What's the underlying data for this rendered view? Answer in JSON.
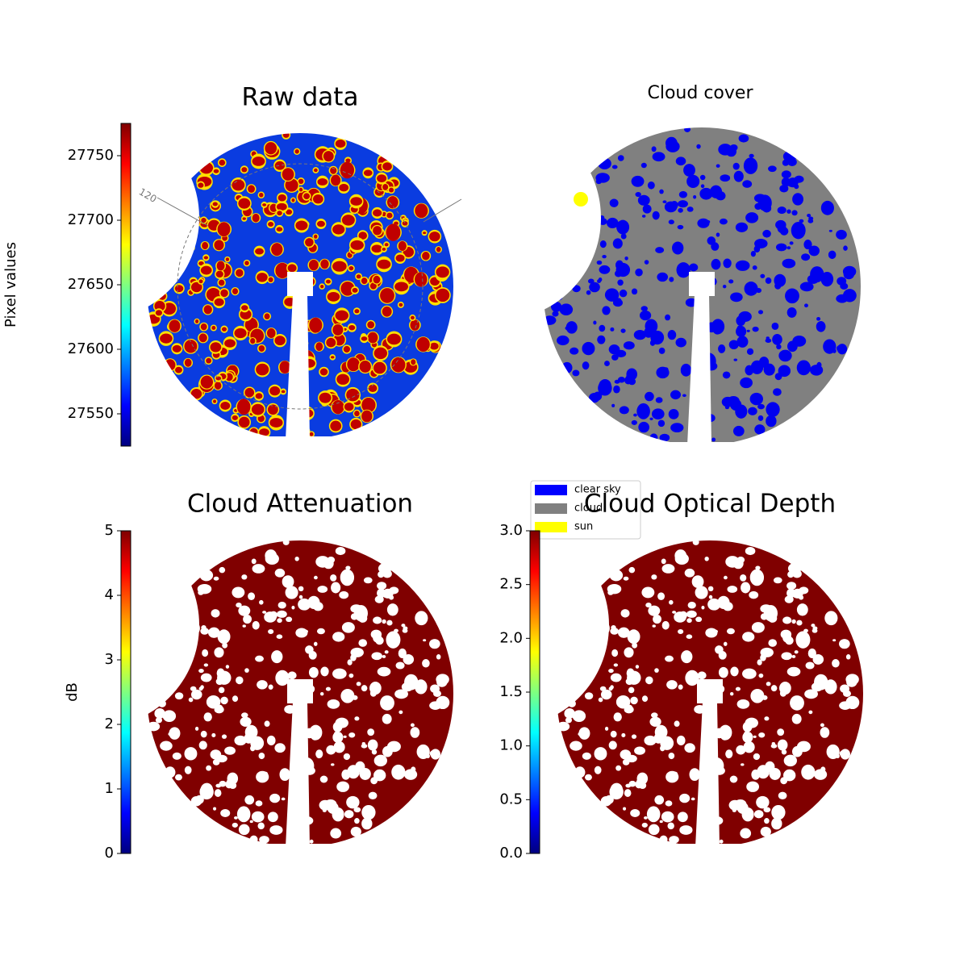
{
  "chart_data": [
    {
      "type": "image",
      "title": "Raw data",
      "ylabel": "Pixel values",
      "colormap": "jet",
      "ylim": [
        27525,
        27775
      ],
      "yticks": [
        27550,
        27600,
        27650,
        27700,
        27750
      ],
      "annotations": [
        "120"
      ]
    },
    {
      "type": "image",
      "title": "Cloud cover",
      "legend": {
        "series": [
          {
            "name": "clear sky",
            "color": "#0000ff"
          },
          {
            "name": "cloud",
            "color": "#808080"
          },
          {
            "name": "sun",
            "color": "#ffff00"
          }
        ]
      }
    },
    {
      "type": "image",
      "title": "Cloud Attenuation",
      "ylabel": "dB",
      "colormap": "jet",
      "ylim": [
        0,
        5
      ],
      "yticks": [
        0,
        1,
        2,
        3,
        4,
        5
      ]
    },
    {
      "type": "image",
      "title": "Cloud Optical Depth",
      "colormap": "jet",
      "ylim": [
        0,
        3
      ],
      "yticks": [
        {
          "value": 0,
          "label": "0.0"
        },
        {
          "value": 0.5,
          "label": "0.5"
        },
        {
          "value": 1,
          "label": "1.0"
        },
        {
          "value": 1.5,
          "label": "1.5"
        },
        {
          "value": 2,
          "label": "2.0"
        },
        {
          "value": 2.5,
          "label": "2.5"
        },
        {
          "value": 3,
          "label": "3.0"
        }
      ]
    }
  ]
}
